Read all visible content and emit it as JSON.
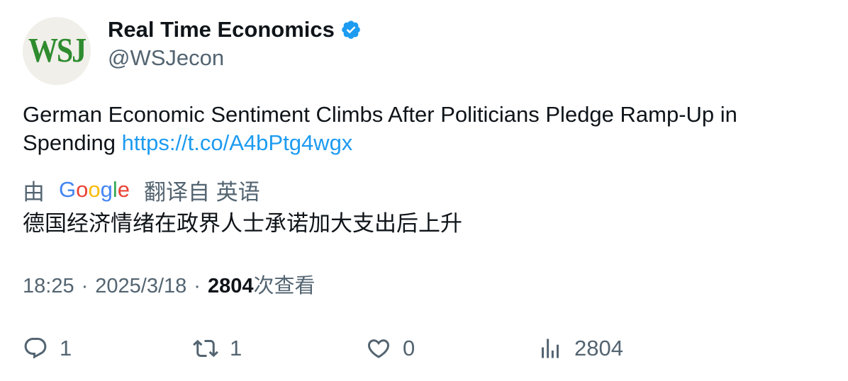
{
  "account": {
    "avatar_text": "WSJ",
    "display_name": "Real Time Economics",
    "handle": "@WSJecon"
  },
  "tweet": {
    "text": "German Economic Sentiment Climbs After Politicians Pledge Ramp-Up in Spending ",
    "link": "https://t.co/A4bPtg4wgx"
  },
  "translation": {
    "by_label": "由",
    "provider": "Google",
    "from_label": "翻译自 英语",
    "text": "德国经济情绪在政界人士承诺加大支出后上升"
  },
  "meta": {
    "time": "18:25",
    "separator": "·",
    "date": "2025/3/18",
    "views_count": "2804",
    "views_label": "次查看"
  },
  "actions": {
    "reply_count": "1",
    "retweet_count": "1",
    "like_count": "0",
    "views_count": "2804"
  },
  "colors": {
    "verified": "#1d9bf0",
    "link": "#1d9bf0",
    "secondary_text": "#536471",
    "avatar_logo": "#2e8b2e"
  }
}
